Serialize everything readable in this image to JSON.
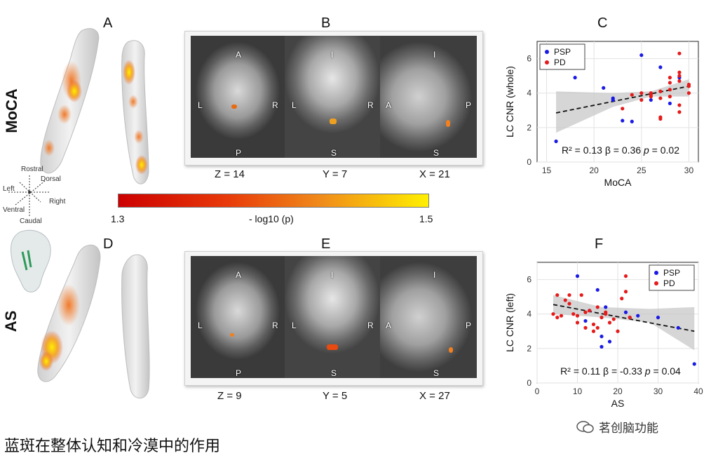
{
  "panels": {
    "A": "A",
    "B": "B",
    "C": "C",
    "D": "D",
    "E": "E",
    "F": "F"
  },
  "row_labels": {
    "top": "MoCA",
    "bottom": "AS"
  },
  "orientation": {
    "rostral": "Rostral",
    "dorsal": "Dorsal",
    "left": "Left",
    "right": "Right",
    "ventral": "Ventral",
    "caudal": "Caudal"
  },
  "slices_top": [
    {
      "label": "Z = 14",
      "marks": [
        "A",
        "L",
        "R",
        "P"
      ]
    },
    {
      "label": "Y = 7",
      "marks": [
        "I",
        "L",
        "R",
        "S"
      ]
    },
    {
      "label": "X = 21",
      "marks": [
        "I",
        "A",
        "P",
        "S"
      ]
    }
  ],
  "slices_bottom": [
    {
      "label": "Z = 9",
      "marks": [
        "A",
        "L",
        "R",
        "P"
      ]
    },
    {
      "label": "Y = 5",
      "marks": [
        "I",
        "L",
        "R",
        "S"
      ]
    },
    {
      "label": "X = 27",
      "marks": [
        "I",
        "A",
        "P",
        "S"
      ]
    }
  ],
  "colorbar": {
    "min": "1.3",
    "max": "1.5",
    "label": "- log10 (p)"
  },
  "colors": {
    "psp": "#1a1ae6",
    "pd": "#e61a1a",
    "ci_band": "#c8c8c8"
  },
  "chart_data": [
    {
      "type": "scatter",
      "title": "",
      "xlabel": "MoCA",
      "ylabel": "LC CNR (whole)",
      "xlim": [
        14,
        31
      ],
      "ylim": [
        0,
        7
      ],
      "xticks": [
        15,
        20,
        25,
        30
      ],
      "yticks": [
        0,
        2,
        4,
        6
      ],
      "legend": "top-left",
      "grid": true,
      "series": [
        {
          "name": "PSP",
          "color": "#1a1ae6",
          "x": [
            16,
            18,
            21,
            22,
            23,
            24,
            25,
            26,
            27,
            28,
            22,
            29
          ],
          "y": [
            1.2,
            4.9,
            4.3,
            3.7,
            2.4,
            2.35,
            6.2,
            3.6,
            5.5,
            3.4,
            3.6,
            4.9
          ]
        },
        {
          "name": "PD",
          "color": "#e61a1a",
          "x": [
            23,
            24,
            25,
            26,
            27,
            27,
            27,
            28,
            28,
            28,
            29,
            29,
            29,
            29,
            29,
            30,
            30,
            26,
            27,
            28,
            29,
            30,
            25,
            26
          ],
          "y": [
            3.1,
            3.9,
            4.0,
            4.0,
            4.1,
            2.6,
            2.5,
            3.8,
            4.2,
            4.9,
            6.3,
            5.0,
            4.7,
            3.3,
            2.9,
            4.5,
            4.4,
            3.9,
            3.7,
            4.6,
            5.2,
            4.0,
            3.6,
            3.8
          ]
        }
      ],
      "fit": {
        "x": [
          16,
          30
        ],
        "y": [
          2.85,
          4.4
        ]
      },
      "ci_upper": [
        4.1,
        4.0,
        4.1,
        4.8
      ],
      "ci_lower": [
        1.7,
        3.2,
        3.8,
        3.8
      ],
      "ci_x": [
        16,
        22,
        26,
        30
      ],
      "stats": {
        "r2": "R² = 0.13",
        "beta": "β = 0.36",
        "p_sym": "p",
        "p_val": " = 0.02"
      }
    },
    {
      "type": "scatter",
      "title": "",
      "xlabel": "AS",
      "ylabel": "LC CNR (left)",
      "xlim": [
        0,
        40
      ],
      "ylim": [
        0,
        7
      ],
      "xticks": [
        0,
        10,
        20,
        30,
        40
      ],
      "yticks": [
        0,
        2,
        4,
        6
      ],
      "legend": "top-right",
      "grid": true,
      "series": [
        {
          "name": "PSP",
          "color": "#1a1ae6",
          "x": [
            10,
            12,
            15,
            16,
            16,
            17,
            18,
            22,
            23,
            25,
            30,
            35,
            39,
            13
          ],
          "y": [
            6.2,
            3.6,
            5.4,
            2.7,
            2.1,
            4.4,
            2.4,
            4.1,
            3.8,
            3.9,
            3.8,
            3.2,
            1.1,
            4.2
          ]
        },
        {
          "name": "PD",
          "color": "#e61a1a",
          "x": [
            4,
            5,
            5,
            6,
            7,
            8,
            9,
            10,
            10,
            11,
            12,
            13,
            14,
            15,
            15,
            16,
            17,
            18,
            20,
            21,
            22,
            22,
            23,
            8,
            12,
            14,
            17,
            19
          ],
          "y": [
            4.0,
            5.1,
            3.8,
            3.9,
            4.8,
            5.1,
            4.0,
            3.9,
            3.5,
            5.1,
            4.1,
            4.2,
            3.4,
            4.4,
            3.2,
            3.8,
            4.1,
            3.5,
            3.0,
            4.9,
            6.2,
            5.3,
            3.8,
            4.6,
            3.2,
            3.0,
            4.0,
            3.7
          ]
        }
      ],
      "fit": {
        "x": [
          4,
          39
        ],
        "y": [
          4.55,
          3.0
        ]
      },
      "ci_upper": [
        5.1,
        4.4,
        4.3,
        4.4
      ],
      "ci_lower": [
        4.0,
        3.8,
        3.5,
        1.9
      ],
      "ci_x": [
        4,
        16,
        28,
        39
      ],
      "stats": {
        "r2": "R² = 0.11",
        "beta": "β = -0.33",
        "p_sym": "p",
        "p_val": " = 0.04"
      }
    }
  ],
  "caption": "蓝斑在整体认知和冷漠中的作用",
  "watermark": "茗创脑功能"
}
